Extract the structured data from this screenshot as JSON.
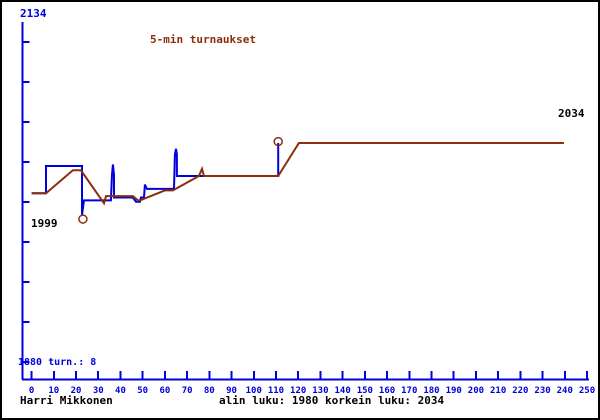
{
  "window": {
    "background": "#ffffff",
    "border_color": "#000000"
  },
  "header": {
    "title": "5-min turnaukset"
  },
  "axis_labels": {
    "y_top": "2134",
    "y_bottom": "1880 turn.: 8"
  },
  "annotations": {
    "start_rating": "1999",
    "final_rating": "2034"
  },
  "footer": {
    "player_name": "Harri Mikkonen",
    "stats": "alin luku: 1980 korkein luku: 2034"
  },
  "colors": {
    "axis_blue": "#0000dd",
    "line_blue": "#0000e0",
    "line_maroon": "#8b2e0a",
    "text_black": "#000000"
  },
  "chart_data": {
    "type": "line",
    "title": "5-min turnaukset",
    "xlabel": "",
    "ylabel": "",
    "x_range": [
      0,
      250
    ],
    "x_tick_step": 10,
    "x_tick_labels": [
      "0",
      "10",
      "20",
      "30",
      "40",
      "50",
      "60",
      "70",
      "80",
      "90",
      "100",
      "110",
      "120",
      "130",
      "140",
      "150",
      "160",
      "170",
      "180",
      "190",
      "200",
      "210",
      "220",
      "230",
      "240",
      "250"
    ],
    "y_range": [
      1880,
      2134
    ],
    "y_tick_count": 9,
    "grid": false,
    "legend": "none",
    "min_rating_shown": 1980,
    "max_rating_shown": 2034,
    "series": [
      {
        "name": "game-rating",
        "color": "#0000e0",
        "points": [
          [
            0,
            1999
          ],
          [
            6.5,
            1999
          ],
          [
            6.5,
            2018
          ],
          [
            22.7,
            2018
          ],
          [
            22.7,
            1984
          ],
          [
            23.6,
            1994
          ],
          [
            35.7,
            1994
          ],
          [
            36.2,
            2012
          ],
          [
            36.6,
            2019
          ],
          [
            37.1,
            2012
          ],
          [
            37.1,
            1996
          ],
          [
            45.6,
            1996
          ],
          [
            47,
            1993
          ],
          [
            48.8,
            1993
          ],
          [
            49.2,
            1996
          ],
          [
            50.6,
            1996
          ],
          [
            51,
            2005
          ],
          [
            51.9,
            2002
          ],
          [
            64.1,
            2002
          ],
          [
            64.5,
            2026
          ],
          [
            65,
            2030
          ],
          [
            65.4,
            2026
          ],
          [
            65.4,
            2011
          ],
          [
            111,
            2011
          ],
          [
            111,
            2034
          ]
        ]
      },
      {
        "name": "tournament-rating",
        "color": "#8b2e0a",
        "points": [
          [
            0,
            1999
          ],
          [
            6.5,
            1999
          ],
          [
            18.6,
            2015
          ],
          [
            22.2,
            2015
          ],
          [
            31.7,
            1994
          ],
          [
            32.6,
            1992
          ],
          [
            33.5,
            1997
          ],
          [
            45.6,
            1997
          ],
          [
            47.9,
            1994
          ],
          [
            48.8,
            1994
          ],
          [
            60,
            2001
          ],
          [
            63.6,
            2001
          ],
          [
            75.3,
            2011
          ],
          [
            76.7,
            2016
          ],
          [
            77.6,
            2011
          ],
          [
            111,
            2011
          ],
          [
            120.3,
            2034
          ],
          [
            239.6,
            2034
          ]
        ]
      }
    ],
    "markers": {
      "color": "#8b2e0a",
      "points": [
        {
          "x": 23.1,
          "y": 1981
        },
        {
          "x": 111,
          "y": 2035
        }
      ]
    }
  }
}
